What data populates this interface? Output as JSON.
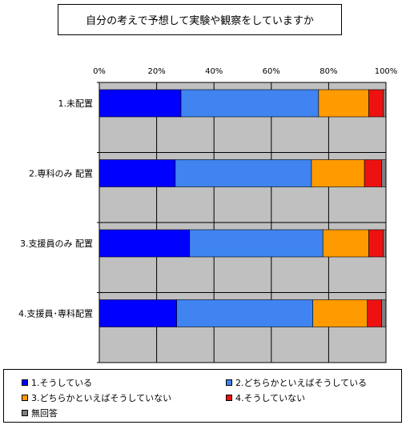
{
  "chart_data": {
    "type": "bar",
    "orientation": "horizontal",
    "stacked": "percent",
    "title": "自分の考えで予想して実験や観察をしていますか",
    "categories": [
      "1.未配置",
      "2.専科のみ 配置",
      "3.支援員のみ 配置",
      "4.支援員･専科配置"
    ],
    "x_ticks": [
      "0%",
      "20%",
      "40%",
      "60%",
      "80%",
      "100%"
    ],
    "xlim": [
      0,
      100
    ],
    "grid": true,
    "legend_position": "bottom",
    "series": [
      {
        "name": "1.そうしている",
        "color": "#0000ff",
        "values": [
          28.5,
          26.5,
          31.5,
          27.0
        ]
      },
      {
        "name": "2.どちらかといえばそうしている",
        "color": "#3f84f0",
        "values": [
          48.0,
          47.5,
          46.5,
          47.5
        ]
      },
      {
        "name": "3.どちらかといえばそうしていない",
        "color": "#ff9a00",
        "values": [
          17.5,
          18.5,
          16.0,
          19.0
        ]
      },
      {
        "name": "4.そうしていない",
        "color": "#ee1111",
        "values": [
          5.0,
          6.0,
          5.0,
          5.0
        ]
      },
      {
        "name": "無回答",
        "color": "#808080",
        "values": [
          1.0,
          1.5,
          1.0,
          1.5
        ]
      }
    ]
  }
}
